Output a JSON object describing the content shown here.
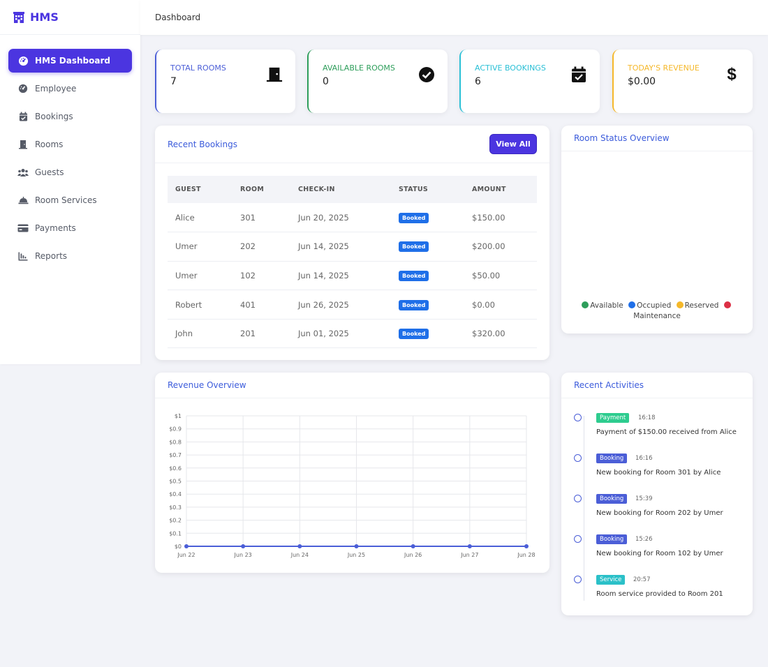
{
  "brand": {
    "name": "HMS"
  },
  "header": {
    "title": "Dashboard"
  },
  "sidebar": {
    "items": [
      {
        "label": "HMS Dashboard",
        "icon": "dashboard-gauge-icon"
      },
      {
        "label": "Employee",
        "icon": "gauge-icon"
      },
      {
        "label": "Bookings",
        "icon": "calendar-check-icon"
      },
      {
        "label": "Rooms",
        "icon": "door-icon"
      },
      {
        "label": "Guests",
        "icon": "users-icon"
      },
      {
        "label": "Room Services",
        "icon": "service-bell-icon"
      },
      {
        "label": "Payments",
        "icon": "credit-card-icon"
      },
      {
        "label": "Reports",
        "icon": "bar-chart-icon"
      }
    ]
  },
  "stats": [
    {
      "label": "TOTAL ROOMS",
      "value": "7",
      "color": "#4b5ed7",
      "icon": "door-icon"
    },
    {
      "label": "AVAILABLE ROOMS",
      "value": "0",
      "color": "#2e9e5b",
      "icon": "check-circle-icon"
    },
    {
      "label": "ACTIVE BOOKINGS",
      "value": "6",
      "color": "#2bc0d6",
      "icon": "calendar-check-icon"
    },
    {
      "label": "TODAY'S REVENUE",
      "value": "$0.00",
      "color": "#f5b82a",
      "icon": "dollar-icon"
    }
  ],
  "recent_bookings": {
    "title": "Recent Bookings",
    "view_all": "View All",
    "columns": [
      "GUEST",
      "ROOM",
      "CHECK-IN",
      "STATUS",
      "AMOUNT"
    ],
    "rows": [
      {
        "guest": "Alice",
        "room": "301",
        "checkin": "Jun 20, 2025",
        "status": "Booked",
        "amount": "$150.00"
      },
      {
        "guest": "Umer",
        "room": "202",
        "checkin": "Jun 14, 2025",
        "status": "Booked",
        "amount": "$200.00"
      },
      {
        "guest": "Umer",
        "room": "102",
        "checkin": "Jun 14, 2025",
        "status": "Booked",
        "amount": "$50.00"
      },
      {
        "guest": "Robert",
        "room": "401",
        "checkin": "Jun 26, 2025",
        "status": "Booked",
        "amount": "$0.00"
      },
      {
        "guest": "John",
        "room": "201",
        "checkin": "Jun 01, 2025",
        "status": "Booked",
        "amount": "$320.00"
      }
    ]
  },
  "room_status": {
    "title": "Room Status Overview",
    "legend": [
      {
        "label": "Available",
        "color": "#2e9e5b"
      },
      {
        "label": "Occupied",
        "color": "#1f6fe8"
      },
      {
        "label": "Reserved",
        "color": "#f5b82a"
      },
      {
        "label": "Maintenance",
        "color": "#dc2f45"
      }
    ]
  },
  "revenue": {
    "title": "Revenue Overview"
  },
  "chart_data": {
    "type": "line",
    "x": [
      "Jun 22",
      "Jun 23",
      "Jun 24",
      "Jun 25",
      "Jun 26",
      "Jun 27",
      "Jun 28"
    ],
    "series": [
      {
        "values": [
          0,
          0,
          0,
          0,
          0,
          0,
          0
        ],
        "color": "#4b5ed7"
      }
    ],
    "yticks": [
      "$0",
      "$0.1",
      "$0.2",
      "$0.3",
      "$0.4",
      "$0.5",
      "$0.6",
      "$0.7",
      "$0.8",
      "$0.9",
      "$1"
    ],
    "ylim": [
      0,
      1
    ],
    "grid": true
  },
  "activities": {
    "title": "Recent Activities",
    "items": [
      {
        "tag": "Payment",
        "tag_color": "#2ecc8f",
        "time": "16:18",
        "text": "Payment of $150.00 received from Alice"
      },
      {
        "tag": "Booking",
        "tag_color": "#4b5ed7",
        "time": "16:16",
        "text": "New booking for Room 301 by Alice"
      },
      {
        "tag": "Booking",
        "tag_color": "#4b5ed7",
        "time": "15:39",
        "text": "New booking for Room 202 by Umer"
      },
      {
        "tag": "Booking",
        "tag_color": "#4b5ed7",
        "time": "15:26",
        "text": "New booking for Room 102 by Umer"
      },
      {
        "tag": "Service",
        "tag_color": "#2bc0c8",
        "time": "20:57",
        "text": "Room service provided to Room 201"
      }
    ]
  }
}
